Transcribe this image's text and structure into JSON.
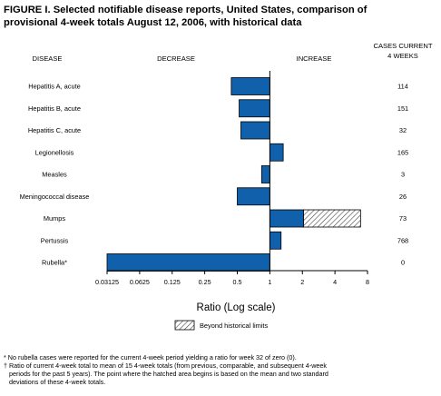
{
  "title_line1": "FIGURE I. Selected notifiable disease reports, United States, comparison of",
  "title_line2": "provisional 4-week totals August 12, 2006, with historical data",
  "headers": {
    "disease": "DISEASE",
    "decrease": "DECREASE",
    "increase": "INCREASE",
    "cases_line1": "CASES CURRENT",
    "cases_line2": "4 WEEKS"
  },
  "legend_label": "Beyond historical limits",
  "footnotes": [
    "* No rubella cases were reported for the current 4-week period yielding a ratio for week 32 of zero (0).",
    "† Ratio of current 4-week total to mean of 15 4-week totals (from previous, comparable, and subsequent 4-week",
    "periods for the past 5 years). The point where the hatched area begins is based on the mean and two standard",
    "deviations of these 4-week totals."
  ],
  "colors": {
    "bar": "#1060ab",
    "hatch": "#444444"
  },
  "chart_data": {
    "type": "bar",
    "orientation": "horizontal",
    "xscale": "log2",
    "xlabel": "Ratio (Log scale)",
    "xlim": [
      0.03125,
      8
    ],
    "baseline": 1,
    "xticks": [
      "0.03125",
      "0.0625",
      "0.125",
      "0.25",
      "0.5",
      "1",
      "2",
      "4",
      "8"
    ],
    "categories": [
      "Hepatitis A, acute",
      "Hepatitis B, acute",
      "Hepatitis C, acute",
      "Legionellosis",
      "Measles",
      "Meningococcal disease",
      "Mumps",
      "Pertussis",
      "Rubella*"
    ],
    "values": [
      0.44,
      0.52,
      0.54,
      1.33,
      0.84,
      0.5,
      6.9,
      1.27,
      0.03125
    ],
    "beyond_historical_limits_from": [
      null,
      null,
      null,
      null,
      null,
      null,
      2.05,
      null,
      null
    ],
    "cases_current_4_weeks": [
      "114",
      "151",
      "32",
      "165",
      "3",
      "26",
      "73",
      "768",
      "0"
    ]
  }
}
